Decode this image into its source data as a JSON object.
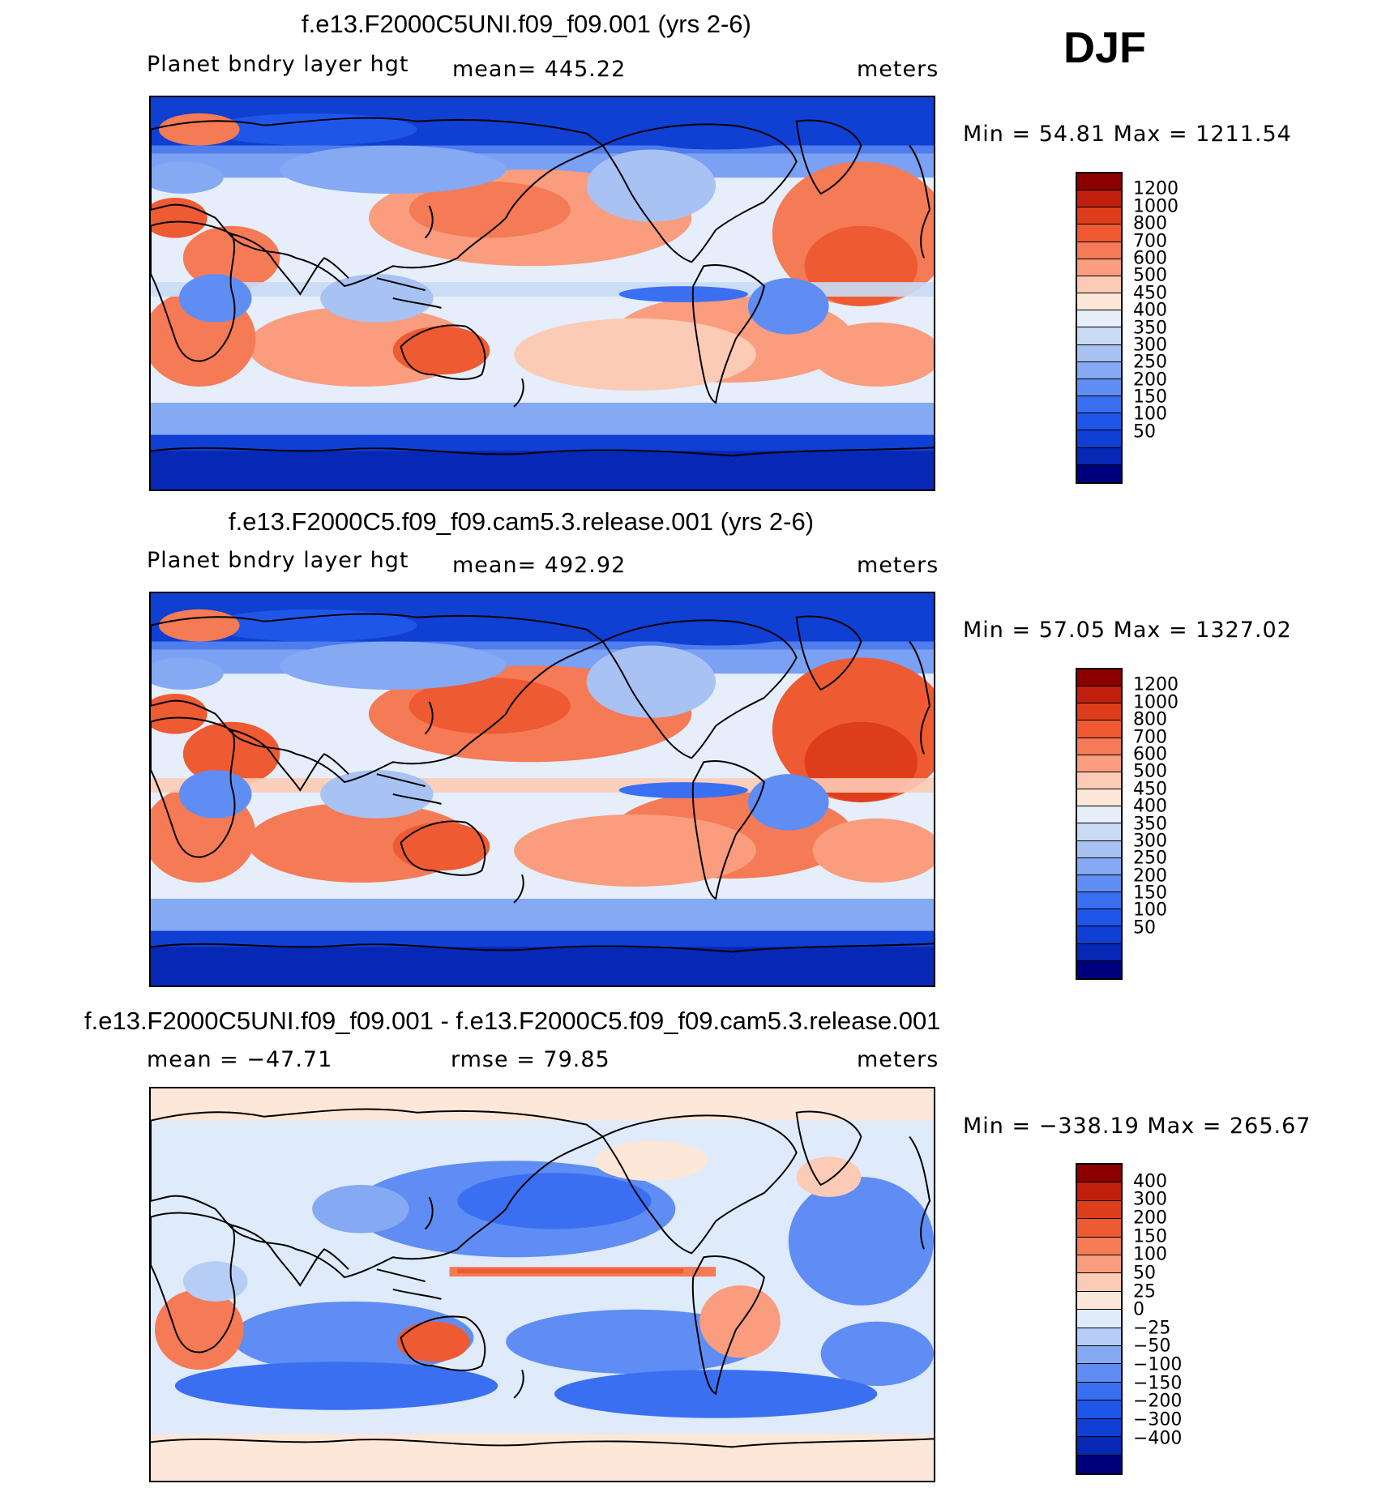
{
  "season": "DJF",
  "colors": {
    "pbl_scale": [
      "#00007d",
      "#0628b4",
      "#0f3fd3",
      "#1f56ea",
      "#3b6ff2",
      "#5f8df3",
      "#85a9f2",
      "#a8c2f3",
      "#c9dbf5",
      "#e5eefa",
      "#fde7d8",
      "#fccbb5",
      "#fa9c7e",
      "#f57a56",
      "#ee5a32",
      "#de3d1c",
      "#bf1f0c",
      "#8b0000"
    ],
    "diff_scale": [
      "#00007d",
      "#0628b4",
      "#0f3fd3",
      "#1f56ea",
      "#3b6ff2",
      "#5f8df3",
      "#85a9f2",
      "#b6cef6",
      "#dfeafa",
      "#fde7d8",
      "#fccbb5",
      "#fa9c7e",
      "#f57a56",
      "#ee5a32",
      "#de3d1c",
      "#bf1f0c",
      "#8b0000"
    ],
    "land": "#000000"
  },
  "panels": [
    {
      "title": "f.e13.F2000C5UNI.f09_f09.001 (yrs 2-6)",
      "left_label": "Planet bndry layer hgt",
      "mid_label": "mean= 445.22",
      "units": "meters",
      "minmax": "Min =   54.81  Max  =  1211.54",
      "colorbar_labels": [
        "1200",
        "1000",
        "800",
        "700",
        "600",
        "500",
        "450",
        "400",
        "350",
        "300",
        "250",
        "200",
        "150",
        "100",
        "50"
      ],
      "style": "model"
    },
    {
      "title": "f.e13.F2000C5.f09_f09.cam5.3.release.001 (yrs 2-6)",
      "left_label": "Planet bndry layer hgt",
      "mid_label": "mean= 492.92",
      "units": "meters",
      "minmax": "Min =   57.05  Max  =  1327.02",
      "colorbar_labels": [
        "1200",
        "1000",
        "800",
        "700",
        "600",
        "500",
        "450",
        "400",
        "350",
        "300",
        "250",
        "200",
        "150",
        "100",
        "50"
      ],
      "style": "model2"
    },
    {
      "title": "f.e13.F2000C5UNI.f09_f09.001 - f.e13.F2000C5.f09_f09.cam5.3.release.001",
      "left_label": "mean  =  −47.71",
      "mid_label": "rmse  =    79.85",
      "units": "meters",
      "minmax": "Min  =  −338.19  Max  =  265.67",
      "colorbar_labels": [
        "400",
        "300",
        "200",
        "150",
        "100",
        "50",
        "25",
        "0",
        "−25",
        "−50",
        "−100",
        "−150",
        "−200",
        "−300",
        "−400"
      ],
      "style": "diff"
    }
  ]
}
